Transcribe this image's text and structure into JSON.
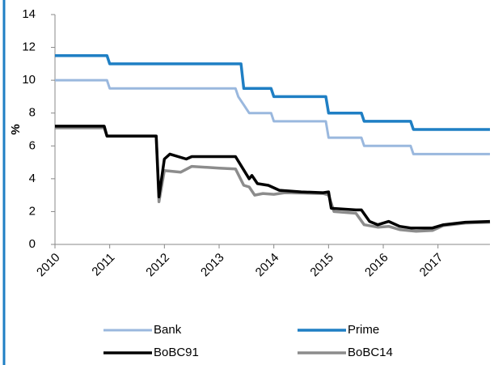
{
  "chart_data": {
    "type": "line",
    "y_label": "%",
    "xlim": [
      2010,
      2017.95
    ],
    "xticks": [
      2010,
      2011,
      2012,
      2013,
      2014,
      2015,
      2016,
      2017
    ],
    "ylim": [
      0,
      14
    ],
    "yticks": [
      0,
      2,
      4,
      6,
      8,
      10,
      12,
      14
    ],
    "grid": false,
    "legend": "bottom",
    "series": [
      {
        "name": "Bank",
        "color": "#9ab8de",
        "x": [
          2010,
          2010.95,
          2011.0,
          2013.3,
          2013.35,
          2013.45,
          2013.55,
          2013.95,
          2014.0,
          2014.95,
          2015.0,
          2015.6,
          2015.65,
          2016.5,
          2016.55,
          2017.95
        ],
        "values": [
          10,
          10,
          9.5,
          9.5,
          9.0,
          8.5,
          8.0,
          8.0,
          7.5,
          7.5,
          6.5,
          6.5,
          6.0,
          6.0,
          5.5,
          5.5
        ]
      },
      {
        "name": "Prime",
        "color": "#1f7fc4",
        "x": [
          2010,
          2010.95,
          2011.0,
          2013.4,
          2013.45,
          2013.95,
          2014.0,
          2014.95,
          2015.0,
          2015.6,
          2015.65,
          2016.5,
          2016.55,
          2017.95
        ],
        "values": [
          11.5,
          11.5,
          11,
          11,
          9.5,
          9.5,
          9,
          9,
          8,
          8,
          7.5,
          7.5,
          7,
          7
        ]
      },
      {
        "name": "BoBC91",
        "color": "#000000",
        "x": [
          2010,
          2010.9,
          2010.95,
          2011.85,
          2011.9,
          2012.0,
          2012.1,
          2012.4,
          2012.5,
          2013.3,
          2013.4,
          2013.55,
          2013.6,
          2013.7,
          2013.9,
          2014.1,
          2014.5,
          2014.9,
          2015.0,
          2015.05,
          2015.5,
          2015.6,
          2015.75,
          2015.9,
          2016.1,
          2016.3,
          2016.5,
          2016.9,
          2017.1,
          2017.5,
          2017.95
        ],
        "values": [
          7.2,
          7.2,
          6.6,
          6.6,
          2.9,
          5.2,
          5.5,
          5.2,
          5.35,
          5.35,
          4.8,
          4.0,
          4.2,
          3.7,
          3.6,
          3.3,
          3.2,
          3.15,
          3.2,
          2.2,
          2.1,
          2.1,
          1.4,
          1.2,
          1.4,
          1.1,
          1.0,
          1.0,
          1.2,
          1.35,
          1.4
        ]
      },
      {
        "name": "BoBC14",
        "color": "#8c8c8c",
        "x": [
          2010,
          2010.9,
          2010.95,
          2011.85,
          2011.9,
          2012.0,
          2012.3,
          2012.5,
          2013.0,
          2013.3,
          2013.45,
          2013.55,
          2013.65,
          2013.8,
          2014.0,
          2014.2,
          2014.9,
          2015.0,
          2015.1,
          2015.5,
          2015.65,
          2015.9,
          2016.1,
          2016.3,
          2016.6,
          2016.9,
          2017.1,
          2017.5,
          2017.95
        ],
        "values": [
          7.1,
          7.1,
          6.6,
          6.6,
          2.6,
          4.5,
          4.4,
          4.75,
          4.65,
          4.6,
          3.6,
          3.5,
          3.0,
          3.1,
          3.05,
          3.15,
          3.1,
          3.0,
          2.0,
          1.9,
          1.2,
          1.05,
          1.1,
          0.9,
          0.8,
          0.85,
          1.15,
          1.3,
          1.35
        ]
      }
    ]
  }
}
